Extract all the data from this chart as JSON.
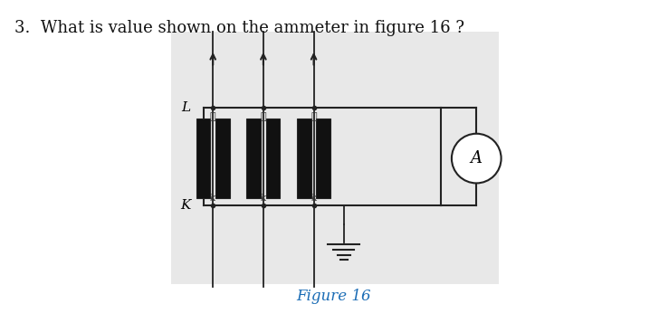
{
  "title_text": "3.  What is value shown on the ammeter in figure 16 ?",
  "figure_caption": "Figure 16",
  "bg_color": "#ffffff",
  "diagram_bg": "#e8e8e8",
  "title_fontsize": 13,
  "caption_fontsize": 12,
  "label_L": "L",
  "label_K": "K",
  "label_A": "A",
  "line_color": "#222222",
  "coil_color": "#111111"
}
